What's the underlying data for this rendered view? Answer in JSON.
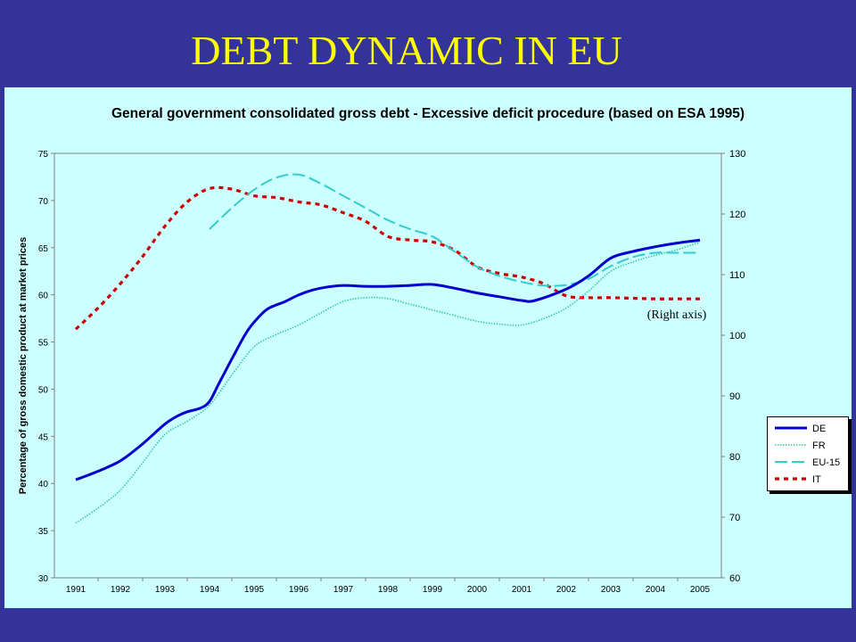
{
  "slide": {
    "title": "DEBT DYNAMIC IN EU"
  },
  "chart_data": {
    "type": "line",
    "title": "General government consolidated gross debt - Excessive deficit procedure (based on ESA 1995)",
    "ylabel": "Percentage of gross domestic product at market prices",
    "ylabel_right": "",
    "annotation": "(Right axis)",
    "categories": [
      "1991",
      "1992",
      "1993",
      "1994",
      "1995",
      "1996",
      "1997",
      "1998",
      "1999",
      "2000",
      "2001",
      "2002",
      "2003",
      "2004",
      "2005"
    ],
    "ylim": [
      30,
      75
    ],
    "yticks": [
      30,
      35,
      40,
      45,
      50,
      55,
      60,
      65,
      70,
      75
    ],
    "ylim_right": [
      60,
      130
    ],
    "yticks_right": [
      60,
      70,
      80,
      90,
      100,
      110,
      120,
      130
    ],
    "grid": false,
    "legend_position": "right",
    "series": [
      {
        "name": "DE",
        "axis": "left",
        "color": "#0000CC",
        "style": "solid",
        "x": [
          1991,
          1991.5,
          1992,
          1992.5,
          1993,
          1993.3,
          1993.5,
          1993.8,
          1994,
          1994.2,
          1994.5,
          1994.8,
          1995,
          1995.3,
          1995.7,
          1996,
          1996.3,
          1996.6,
          1997,
          1997.5,
          1998,
          1998.5,
          1999,
          1999.5,
          2000,
          2000.5,
          2001,
          2001.3,
          2002,
          2002.5,
          2003,
          2003.5,
          2004,
          2004.5,
          2005
        ],
        "y": [
          40.4,
          41.3,
          42.4,
          44.2,
          46.3,
          47.2,
          47.6,
          48,
          48.7,
          50.5,
          53.2,
          55.8,
          57.1,
          58.5,
          59.3,
          60,
          60.5,
          60.8,
          61.0,
          60.9,
          60.9,
          61.0,
          61.1,
          60.7,
          60.2,
          59.8,
          59.4,
          59.4,
          60.6,
          62,
          63.9,
          64.6,
          65.1,
          65.5,
          65.8
        ]
      },
      {
        "name": "FR",
        "axis": "left",
        "color": "#33CC99",
        "style": "dotted",
        "x": [
          1991,
          1991.5,
          1992,
          1992.5,
          1993,
          1993.5,
          1994,
          1994.5,
          1995,
          1995.5,
          1996,
          1996.5,
          1997,
          1997.5,
          1998,
          1998.5,
          1999,
          1999.5,
          2000,
          2000.5,
          2001,
          2001.5,
          2002,
          2002.5,
          2003,
          2003.5,
          2004,
          2004.5,
          2005
        ],
        "y": [
          35.8,
          37.4,
          39.3,
          42.2,
          45.2,
          46.6,
          48.3,
          51.5,
          54.5,
          55.8,
          56.8,
          58.1,
          59.3,
          59.7,
          59.6,
          59,
          58.4,
          57.8,
          57.2,
          56.9,
          56.8,
          57.5,
          58.6,
          60.4,
          62.5,
          63.5,
          64.2,
          64.8,
          65.6
        ]
      },
      {
        "name": "EU-15",
        "axis": "right",
        "color": "#33CCCC",
        "style": "dash",
        "x": [
          1994,
          1994.5,
          1995,
          1995.5,
          1996,
          1996.5,
          1997,
          1997.5,
          1998,
          1998.5,
          1999,
          1999.5,
          2000,
          2000.5,
          2001,
          2001.5,
          2002,
          2002.5,
          2003,
          2003.5,
          2004,
          2004.5,
          2005
        ],
        "y": [
          117.5,
          121,
          124,
          126,
          126.5,
          125,
          123,
          121,
          119,
          117.5,
          116.3,
          113.8,
          111.3,
          109.8,
          108.8,
          108.2,
          108.3,
          109.3,
          111.4,
          112.9,
          113.6,
          113.6,
          113.6
        ]
      },
      {
        "name": "IT",
        "axis": "right",
        "color": "#CC0000",
        "style": "dashed-thick",
        "x": [
          1991,
          1991.5,
          1992,
          1992.5,
          1993,
          1993.5,
          1994,
          1994.5,
          1995,
          1995.5,
          1996,
          1996.5,
          1997,
          1997.5,
          1998,
          1998.5,
          1999,
          1999.5,
          2000,
          2000.5,
          2001,
          2001.5,
          2002,
          2002.5,
          2003,
          2003.5,
          2004,
          2004.5,
          2005
        ],
        "y": [
          101,
          104.5,
          108.5,
          113,
          118,
          122,
          124.2,
          124.1,
          123,
          122.7,
          122,
          121.5,
          120.2,
          118.8,
          116.3,
          115.7,
          115.4,
          114,
          111.3,
          110.2,
          109.6,
          108.5,
          106.5,
          106.2,
          106.2,
          106.1,
          106,
          106,
          106
        ]
      }
    ]
  }
}
